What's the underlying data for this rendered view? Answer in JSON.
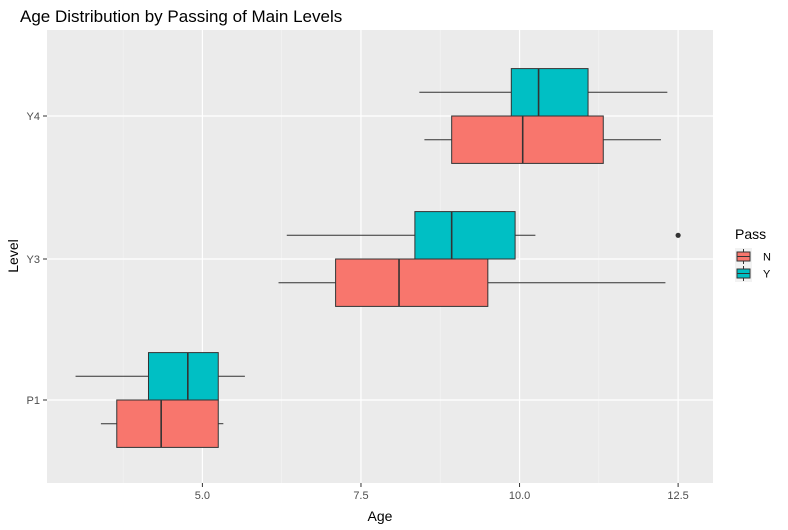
{
  "chart_data": {
    "type": "boxplot",
    "orientation": "horizontal",
    "title": "Age Distribution by Passing of Main Levels",
    "xlabel": "Age",
    "ylabel": "Level",
    "xlim": [
      2.55,
      13.05
    ],
    "x_ticks": [
      5.0,
      7.5,
      10.0,
      12.5
    ],
    "x_tick_labels": [
      "5.0",
      "7.5",
      "10.0",
      "12.5"
    ],
    "categories": [
      "P1",
      "Y3",
      "Y4"
    ],
    "legend": {
      "title": "Pass",
      "position": "right"
    },
    "series": [
      {
        "name": "N",
        "color": "#F8766D",
        "boxes": [
          {
            "category": "P1",
            "whisker_low": 3.4,
            "q1": 3.65,
            "median": 4.35,
            "q3": 5.25,
            "whisker_high": 5.33,
            "outliers": []
          },
          {
            "category": "Y3",
            "whisker_low": 6.2,
            "q1": 7.1,
            "median": 8.1,
            "q3": 9.5,
            "whisker_high": 12.3,
            "outliers": []
          },
          {
            "category": "Y4",
            "whisker_low": 8.5,
            "q1": 8.93,
            "median": 10.05,
            "q3": 11.32,
            "whisker_high": 12.23,
            "outliers": []
          }
        ]
      },
      {
        "name": "Y",
        "color": "#00BFC4",
        "boxes": [
          {
            "category": "P1",
            "whisker_low": 3.0,
            "q1": 4.15,
            "median": 4.77,
            "q3": 5.25,
            "whisker_high": 5.67,
            "outliers": []
          },
          {
            "category": "Y3",
            "whisker_low": 6.33,
            "q1": 8.35,
            "median": 8.93,
            "q3": 9.93,
            "whisker_high": 10.25,
            "outliers": [
              12.5
            ]
          },
          {
            "category": "Y4",
            "whisker_low": 8.42,
            "q1": 9.87,
            "median": 10.3,
            "q3": 11.08,
            "whisker_high": 12.33,
            "outliers": []
          }
        ]
      }
    ]
  }
}
